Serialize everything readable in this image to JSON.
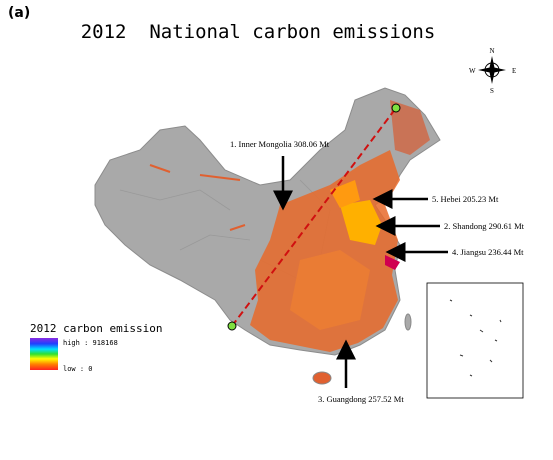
{
  "panel_label": "(a)",
  "title": "2012  National carbon emissions",
  "compass": {
    "north": "N",
    "east": "E",
    "south": "S",
    "west": "W"
  },
  "annotations": [
    "1. Inner Mongolia 308.06 Mt",
    "5. Hebei 205.23 Mt",
    "2. Shandong 290.61 Mt",
    "4. Jiangsu 236.44 Mt",
    "3. Guangdong 257.52 Mt"
  ],
  "legend": {
    "title": "2012 carbon emission",
    "high": "high : 918168",
    "low": "low : 0"
  }
}
